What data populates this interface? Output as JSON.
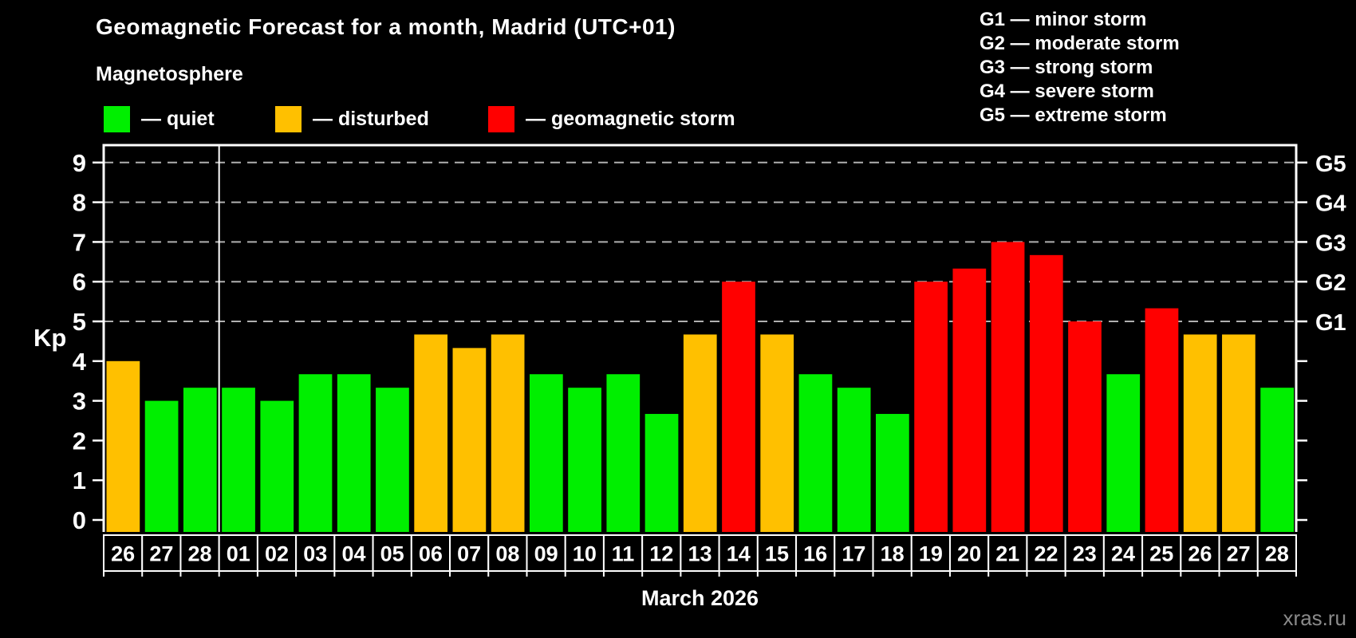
{
  "header": {
    "title": "Geomagnetic Forecast for a month, Madrid (UTC+01)",
    "subtitle": "Magnetosphere"
  },
  "legend": {
    "items": [
      {
        "name": "quiet",
        "label": "— quiet",
        "color": "#00ef00"
      },
      {
        "name": "disturbed",
        "label": "— disturbed",
        "color": "#ffc000"
      },
      {
        "name": "storm",
        "label": "— geomagnetic storm",
        "color": "#ff0000"
      }
    ]
  },
  "scale_legend": {
    "lines": [
      "G1 — minor storm",
      "G2 — moderate storm",
      "G3 — strong storm",
      "G4 — severe storm",
      "G5 — extreme storm"
    ]
  },
  "watermark": "xras.ru",
  "chart_data": {
    "type": "bar",
    "title": "Geomagnetic Forecast for a month, Madrid (UTC+01)",
    "ylabel": "Kp",
    "xlabel": "March 2026",
    "ylim": [
      0,
      9.4
    ],
    "y_ticks": [
      0,
      1,
      2,
      3,
      4,
      5,
      6,
      7,
      8,
      9
    ],
    "grid": "dashed horizontal lines at Kp 5,6,7,8,9 only",
    "legend_position": "top",
    "categories": [
      "26",
      "27",
      "28",
      "01",
      "02",
      "03",
      "04",
      "05",
      "06",
      "07",
      "08",
      "09",
      "10",
      "11",
      "12",
      "13",
      "14",
      "15",
      "16",
      "17",
      "18",
      "19",
      "20",
      "21",
      "22",
      "23",
      "24",
      "25",
      "26",
      "27",
      "28"
    ],
    "values": [
      4,
      3,
      3.33,
      3.33,
      3,
      3.67,
      3.67,
      3.33,
      4.67,
      4.33,
      4.67,
      3.67,
      3.33,
      3.67,
      2.67,
      4.67,
      6,
      4.67,
      3.67,
      3.33,
      2.67,
      6,
      6.33,
      7,
      6.67,
      5,
      3.67,
      5.33,
      4.67,
      4.67,
      3.33
    ],
    "statuses": [
      "disturbed",
      "quiet",
      "quiet",
      "quiet",
      "quiet",
      "quiet",
      "quiet",
      "quiet",
      "disturbed",
      "disturbed",
      "disturbed",
      "quiet",
      "quiet",
      "quiet",
      "quiet",
      "disturbed",
      "storm",
      "disturbed",
      "quiet",
      "quiet",
      "quiet",
      "storm",
      "storm",
      "storm",
      "storm",
      "storm",
      "quiet",
      "storm",
      "disturbed",
      "disturbed",
      "quiet"
    ],
    "status_colors": {
      "quiet": "#00ef00",
      "disturbed": "#ffc000",
      "storm": "#ff0000"
    },
    "month_separator_after_index": 2,
    "right_axis": {
      "labels": [
        "G1",
        "G2",
        "G3",
        "G4",
        "G5"
      ],
      "at_kp": [
        5,
        6,
        7,
        8,
        9
      ]
    }
  }
}
